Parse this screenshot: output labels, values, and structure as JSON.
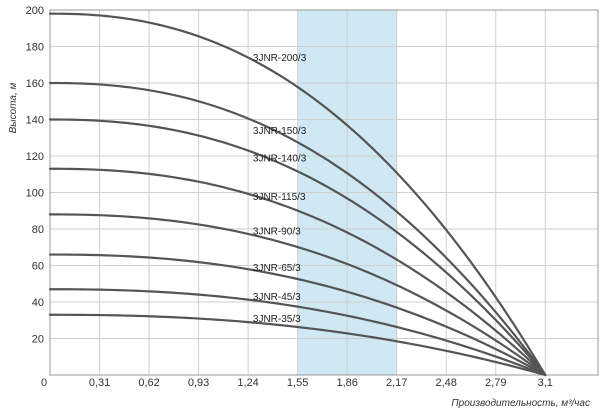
{
  "chart_data": {
    "type": "line",
    "title": "",
    "xlabel": "Производительность, м³/час",
    "ylabel": "Высота, м",
    "x_ticks": [
      "0",
      "0,31",
      "0,62",
      "0,93",
      "1,24",
      "1,55",
      "1,86",
      "2,17",
      "2,48",
      "2,79",
      "3,1"
    ],
    "x_tick_values": [
      0,
      0.31,
      0.62,
      0.93,
      1.24,
      1.55,
      1.86,
      2.17,
      2.48,
      2.79,
      3.1
    ],
    "y_ticks": [
      20,
      40,
      60,
      80,
      100,
      120,
      140,
      160,
      180,
      200
    ],
    "xlim": [
      0,
      3.43
    ],
    "ylim": [
      0,
      200
    ],
    "grid": true,
    "highlight_band": {
      "x_from": 1.55,
      "x_to": 2.17,
      "color": "#cfe8f3"
    },
    "series": [
      {
        "name": "3JNR-200/3",
        "shut_off_head": 198,
        "max_flow": 3.1,
        "label_at": [
          1.27,
          172
        ]
      },
      {
        "name": "3JNR-150/3",
        "shut_off_head": 160,
        "max_flow": 3.1,
        "label_at": [
          1.27,
          132
        ]
      },
      {
        "name": "3JNR-140/3",
        "shut_off_head": 140,
        "max_flow": 3.1,
        "label_at": [
          1.27,
          117
        ]
      },
      {
        "name": "3JNR-115/3",
        "shut_off_head": 113,
        "max_flow": 3.1,
        "label_at": [
          1.27,
          96
        ]
      },
      {
        "name": "3JNR-90/3",
        "shut_off_head": 88,
        "max_flow": 3.1,
        "label_at": [
          1.27,
          77
        ]
      },
      {
        "name": "3JNR-65/3",
        "shut_off_head": 66,
        "max_flow": 3.1,
        "label_at": [
          1.27,
          57
        ]
      },
      {
        "name": "3JNR-45/3",
        "shut_off_head": 47,
        "max_flow": 3.1,
        "label_at": [
          1.27,
          41
        ]
      },
      {
        "name": "3JNR-35/3",
        "shut_off_head": 33,
        "max_flow": 3.1,
        "label_at": [
          1.27,
          29
        ]
      }
    ],
    "curve_exponent": 2.3,
    "colors": {
      "curve": "#555555",
      "grid": "#cfcfcf",
      "band": "#cfe8f3"
    }
  }
}
